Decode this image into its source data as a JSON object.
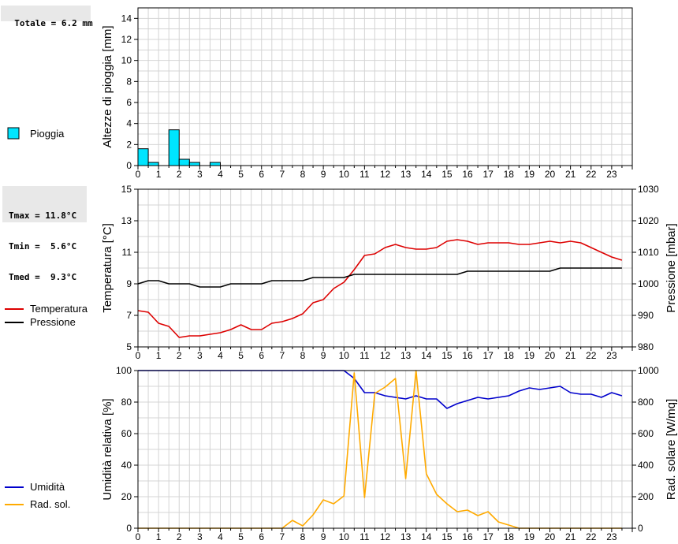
{
  "info": {
    "rain_total": "Totale = 6.2 mm",
    "temp_stats": [
      "Tmax = 11.8°C",
      "Tmin =  5.6°C",
      "Tmed =  9.3°C"
    ]
  },
  "chart_data": [
    {
      "type": "bar",
      "ylabel": "Altezze di pioggia [mm]",
      "ylim": [
        0,
        15
      ],
      "yticks": [
        0,
        2,
        4,
        6,
        8,
        10,
        12,
        14
      ],
      "xlim": [
        0,
        24
      ],
      "xticks": [
        "0",
        "1",
        "2",
        "3",
        "4",
        "5",
        "6",
        "7",
        "8",
        "9",
        "10",
        "11",
        "12",
        "13",
        "14",
        "15",
        "16",
        "17",
        "18",
        "19",
        "20",
        "21",
        "22",
        "23"
      ],
      "grid": true,
      "series": [
        {
          "name": "Pioggia",
          "color": "#00e5ff",
          "x": [
            0.0,
            0.5,
            1.5,
            2.0,
            2.5,
            3.5
          ],
          "width": 0.5,
          "values": [
            1.6,
            0.3,
            3.4,
            0.6,
            0.3,
            0.3
          ]
        }
      ]
    },
    {
      "type": "line",
      "ylabel": "Temperatura [°C]",
      "y2label": "Pressione [mbar]",
      "ylim": [
        5,
        15
      ],
      "yticks": [
        5,
        7,
        9,
        11,
        13,
        15
      ],
      "y2lim": [
        980,
        1030
      ],
      "y2ticks": [
        980,
        990,
        1000,
        1010,
        1020,
        1030
      ],
      "xlim": [
        0,
        24
      ],
      "grid": true,
      "series": [
        {
          "name": "Temperatura",
          "axis": "left",
          "color": "#dd0000",
          "x": [
            0,
            0.5,
            1,
            1.5,
            2,
            2.5,
            3,
            3.5,
            4,
            4.5,
            5,
            5.5,
            6,
            6.5,
            7,
            7.5,
            8,
            8.5,
            9,
            9.5,
            10,
            10.5,
            11,
            11.5,
            12,
            12.5,
            13,
            13.5,
            14,
            14.5,
            15,
            15.5,
            16,
            16.5,
            17,
            17.5,
            18,
            18.5,
            19,
            19.5,
            20,
            20.5,
            21,
            21.5,
            22,
            22.5,
            23,
            23.5
          ],
          "y": [
            7.3,
            7.2,
            6.5,
            6.3,
            5.6,
            5.7,
            5.7,
            5.8,
            5.9,
            6.1,
            6.4,
            6.1,
            6.1,
            6.5,
            6.6,
            6.8,
            7.1,
            7.8,
            8.0,
            8.7,
            9.1,
            9.9,
            10.8,
            10.9,
            11.3,
            11.5,
            11.3,
            11.2,
            11.2,
            11.3,
            11.7,
            11.8,
            11.7,
            11.5,
            11.6,
            11.6,
            11.6,
            11.5,
            11.5,
            11.6,
            11.7,
            11.6,
            11.7,
            11.6,
            11.3,
            11.0,
            10.7,
            10.5
          ]
        },
        {
          "name": "Pressione",
          "axis": "right",
          "color": "#000000",
          "x": [
            0,
            0.5,
            1,
            1.5,
            2,
            2.5,
            3,
            3.5,
            4,
            4.5,
            5,
            5.5,
            6,
            6.5,
            7,
            7.5,
            8,
            8.5,
            9,
            9.5,
            10,
            10.5,
            11,
            11.5,
            12,
            12.5,
            13,
            13.5,
            14,
            14.5,
            15,
            15.5,
            16,
            16.5,
            17,
            17.5,
            18,
            18.5,
            19,
            19.5,
            20,
            20.5,
            21,
            21.5,
            22,
            22.5,
            23,
            23.5
          ],
          "y": [
            1000,
            1001,
            1001,
            1000,
            1000,
            1000,
            999,
            999,
            999,
            1000,
            1000,
            1000,
            1000,
            1001,
            1001,
            1001,
            1001,
            1002,
            1002,
            1002,
            1002,
            1003,
            1003,
            1003,
            1003,
            1003,
            1003,
            1003,
            1003,
            1003,
            1003,
            1003,
            1004,
            1004,
            1004,
            1004,
            1004,
            1004,
            1004,
            1004,
            1004,
            1005,
            1005,
            1005,
            1005,
            1005,
            1005,
            1005
          ]
        }
      ]
    },
    {
      "type": "line",
      "ylabel": "Umidità relativa [%]",
      "y2label": "Rad. solare [W/mq]",
      "ylim": [
        0,
        100
      ],
      "yticks": [
        0,
        20,
        40,
        60,
        80,
        100
      ],
      "y2lim": [
        0,
        1000
      ],
      "y2ticks": [
        0,
        200,
        400,
        600,
        800,
        1000
      ],
      "xlim": [
        0,
        24
      ],
      "grid": true,
      "series": [
        {
          "name": "Umidità",
          "axis": "left",
          "color": "#0000cc",
          "x": [
            0,
            0.5,
            1,
            1.5,
            2,
            2.5,
            3,
            3.5,
            4,
            4.5,
            5,
            5.5,
            6,
            6.5,
            7,
            7.5,
            8,
            8.5,
            9,
            9.5,
            10,
            10.5,
            11,
            11.5,
            12,
            12.5,
            13,
            13.5,
            14,
            14.5,
            15,
            15.5,
            16,
            16.5,
            17,
            17.5,
            18,
            18.5,
            19,
            19.5,
            20,
            20.5,
            21,
            21.5,
            22,
            22.5,
            23,
            23.5
          ],
          "y": [
            100,
            100,
            100,
            100,
            100,
            100,
            100,
            100,
            100,
            100,
            100,
            100,
            100,
            100,
            100,
            100,
            100,
            100,
            100,
            100,
            100,
            95,
            86,
            86,
            84,
            83,
            82,
            84,
            82,
            82,
            76,
            79,
            81,
            83,
            82,
            83,
            84,
            87,
            89,
            88,
            89,
            90,
            86,
            85,
            85,
            83,
            86,
            84
          ]
        },
        {
          "name": "Rad. sol.",
          "axis": "right",
          "color": "#ffaa00",
          "x": [
            0,
            0.5,
            1,
            1.5,
            2,
            2.5,
            3,
            3.5,
            4,
            4.5,
            5,
            5.5,
            6,
            6.5,
            7,
            7.5,
            8,
            8.5,
            9,
            9.5,
            10,
            10.5,
            11,
            11.5,
            12,
            12.5,
            13,
            13.5,
            14,
            14.5,
            15,
            15.5,
            16,
            16.5,
            17,
            17.5,
            18,
            18.5,
            19,
            19.5,
            20,
            20.5,
            21,
            21.5,
            22,
            22.5,
            23,
            23.5
          ],
          "y": [
            0,
            0,
            0,
            0,
            0,
            0,
            0,
            0,
            0,
            0,
            0,
            0,
            0,
            0,
            0,
            50,
            15,
            85,
            180,
            155,
            205,
            985,
            195,
            855,
            895,
            950,
            315,
            1000,
            345,
            215,
            155,
            105,
            115,
            80,
            105,
            40,
            20,
            0,
            0,
            0,
            0,
            0,
            0,
            0,
            0,
            0,
            0,
            0
          ]
        }
      ]
    }
  ]
}
